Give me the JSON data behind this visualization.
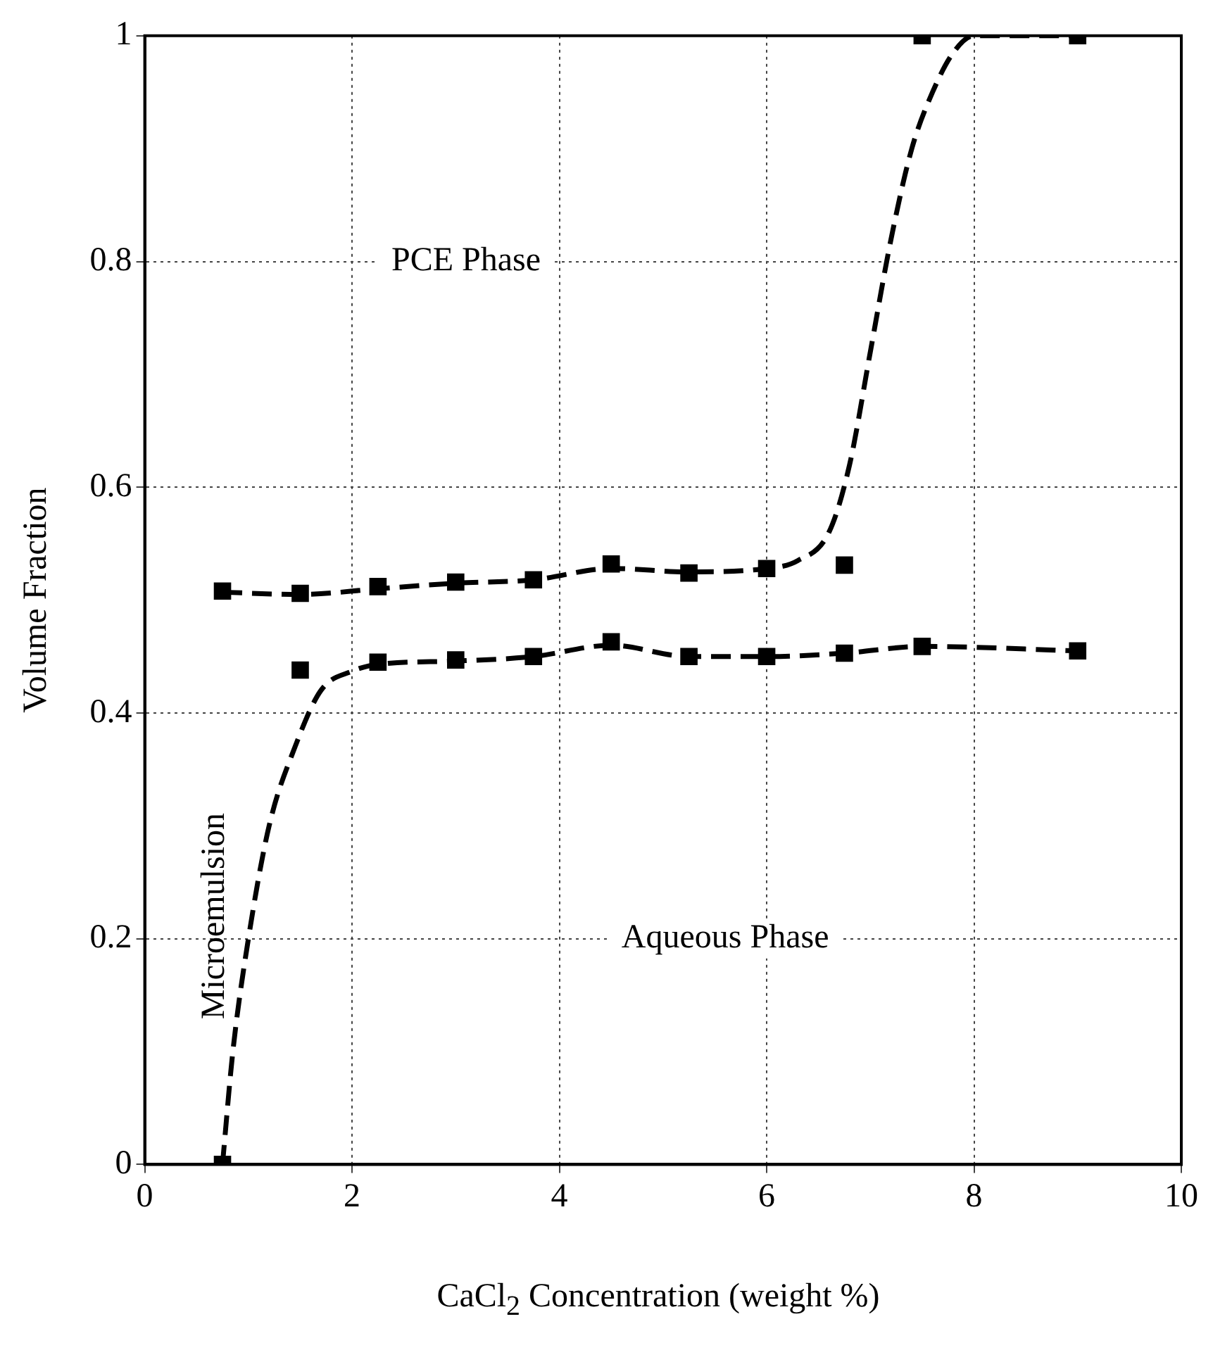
{
  "chart_data": {
    "type": "scatter",
    "xlabel": "CaCl$_{2}$ Concentration (weight %)",
    "ylabel": "Volume Fraction",
    "xlim": [
      0,
      10
    ],
    "xticks": [
      0,
      2,
      4,
      6,
      8,
      10
    ],
    "ylim": [
      0,
      1
    ],
    "yticks": [
      0,
      0.2,
      0.4,
      0.6,
      0.8,
      1
    ],
    "grid": true,
    "legend": false,
    "marker": "square",
    "annotations": [
      "PCE Phase",
      "Aqueous Phase",
      "Microemulsion"
    ],
    "series": [
      {
        "color": "#000000",
        "x": [
          0.75,
          1.5,
          2.25,
          3,
          3.75,
          4.5,
          5.25,
          6,
          6.75,
          7.5,
          9
        ],
        "values": [
          0.508,
          0.506,
          0.512,
          0.516,
          0.518,
          0.532,
          0.524,
          0.528,
          0.531,
          1,
          1
        ]
      },
      {
        "color": "#000000",
        "x": [
          0.75,
          1.5,
          2.25,
          3,
          3.75,
          4.5,
          5.25,
          6,
          6.75,
          7.5,
          9
        ],
        "values": [
          0,
          0.438,
          0.445,
          0.447,
          0.45,
          0.463,
          0.45,
          0.45,
          0.453,
          0.459,
          0.455
        ]
      },
      {
        "type": "line",
        "color": "#000000",
        "line_style": "dashed",
        "marker": "none",
        "x": [
          0.75,
          1.5,
          2.25,
          3,
          3.75,
          4.5,
          5.25,
          6,
          6.3,
          6.6,
          6.8,
          7,
          7.2,
          7.4,
          7.6,
          7.8,
          8,
          9
        ],
        "values": [
          0.507,
          0.505,
          0.51,
          0.515,
          0.518,
          0.528,
          0.525,
          0.528,
          0.535,
          0.56,
          0.62,
          0.72,
          0.82,
          0.9,
          0.95,
          0.985,
          1,
          1
        ]
      },
      {
        "type": "line",
        "color": "#000000",
        "line_style": "dashed",
        "marker": "none",
        "x": [
          0.75,
          0.85,
          1,
          1.2,
          1.45,
          1.7,
          2,
          2.25,
          3,
          3.75,
          4.5,
          5.25,
          6,
          6.75,
          7.5,
          9
        ],
        "values": [
          0,
          0.1,
          0.2,
          0.3,
          0.37,
          0.42,
          0.437,
          0.443,
          0.446,
          0.45,
          0.46,
          0.45,
          0.45,
          0.453,
          0.459,
          0.455
        ]
      }
    ]
  }
}
